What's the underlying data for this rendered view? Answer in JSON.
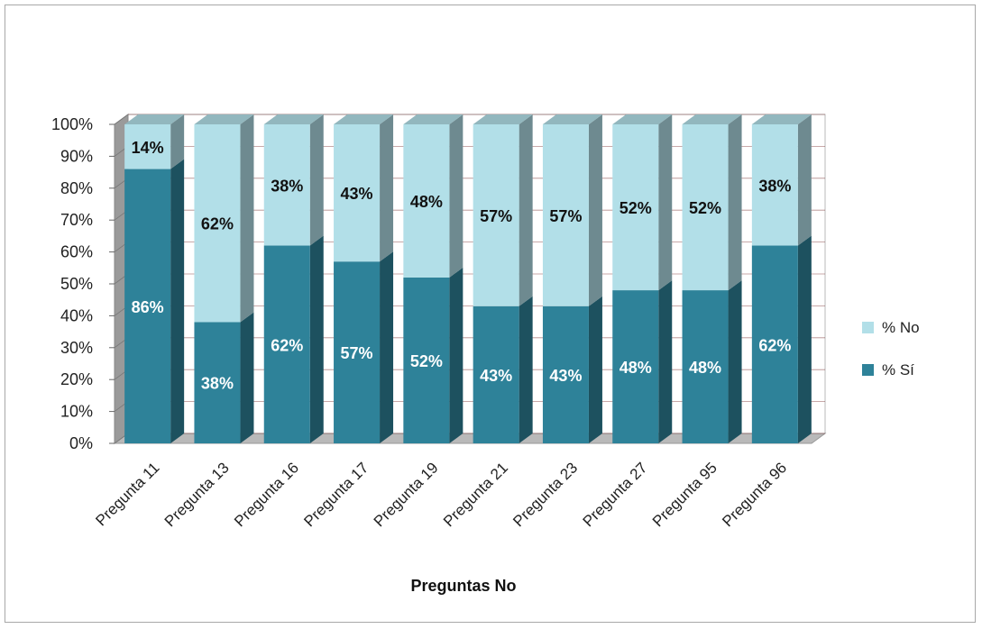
{
  "chart_data": {
    "type": "bar",
    "stacked": true,
    "percent": true,
    "three_d": true,
    "categories": [
      "Pregunta 11",
      "Pregunta 13",
      "Pregunta 16",
      "Pregunta 17",
      "Pregunta 19",
      "Pregunta 21",
      "Pregunta 23",
      "Pregunta 27",
      "Pregunta 95",
      "Pregunta 96"
    ],
    "series": [
      {
        "name": "% Sí",
        "values": [
          86,
          38,
          62,
          57,
          52,
          43,
          43,
          48,
          48,
          62
        ],
        "color": "#2e8299"
      },
      {
        "name": "% No",
        "values": [
          14,
          62,
          38,
          43,
          48,
          57,
          57,
          52,
          52,
          38
        ],
        "color": "#b2dfe8"
      }
    ],
    "data_labels": {
      "% Sí": [
        "86%",
        "38%",
        "62%",
        "57%",
        "52%",
        "43%",
        "43%",
        "48%",
        "48%",
        "62%"
      ],
      "% No": [
        "14%",
        "62%",
        "38%",
        "43%",
        "48%",
        "57%",
        "57%",
        "52%",
        "52%",
        "38%"
      ]
    },
    "y_ticks": [
      "0%",
      "10%",
      "20%",
      "30%",
      "40%",
      "50%",
      "60%",
      "70%",
      "80%",
      "90%",
      "100%"
    ],
    "ylim": [
      0,
      100
    ],
    "xlabel": "Preguntas No",
    "ylabel": "",
    "title": "",
    "legend": {
      "position": "right",
      "order": [
        "% No",
        "% Sí"
      ]
    },
    "grid": true
  }
}
